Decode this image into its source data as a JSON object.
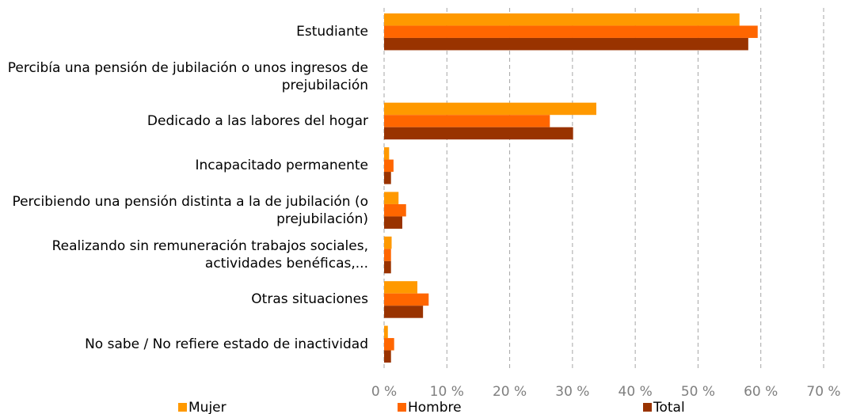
{
  "chart_data": {
    "type": "bar",
    "orientation": "horizontal",
    "categories": [
      "Estudiante",
      "Percibía una pensión de jubilación o unos ingresos de prejubilación",
      "Dedicado a las labores del hogar",
      "Incapacitado permanente",
      "Percibiendo una pensión distinta a la de jubilación (o prejubilación)",
      "Realizando sin remuneración trabajos sociales, actividades benéficas,...",
      "Otras situaciones",
      "No sabe / No refiere estado de inactividad"
    ],
    "series": [
      {
        "name": "Mujer",
        "color": "#ff9900",
        "values": [
          56.6,
          0,
          33.8,
          0.8,
          2.3,
          1.2,
          5.3,
          0.6
        ]
      },
      {
        "name": "Hombre",
        "color": "#ff6600",
        "values": [
          59.5,
          0,
          26.4,
          1.5,
          3.5,
          1.1,
          7.1,
          1.6
        ]
      },
      {
        "name": "Total",
        "color": "#993300",
        "values": [
          58.0,
          0,
          30.1,
          1.1,
          2.9,
          1.1,
          6.2,
          1.1
        ]
      }
    ],
    "xlim": [
      0,
      70
    ],
    "xticks": [
      {
        "value": 0,
        "label": "0 %"
      },
      {
        "value": 10,
        "label": "10 %"
      },
      {
        "value": 20,
        "label": "20 %"
      },
      {
        "value": 30,
        "label": "30 %"
      },
      {
        "value": 40,
        "label": "40 %"
      },
      {
        "value": 50,
        "label": "50 %"
      },
      {
        "value": 60,
        "label": "60 %"
      },
      {
        "value": 70,
        "label": "70 %"
      }
    ],
    "grid": true,
    "legend": "bottom"
  }
}
